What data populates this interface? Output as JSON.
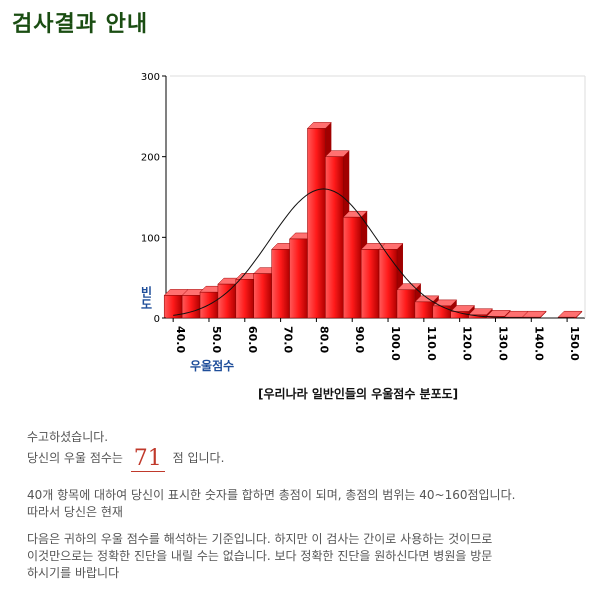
{
  "page": {
    "title": "검사결과 안내",
    "caption": "[우리나라 일반인들의 우울점수 분포도]"
  },
  "result": {
    "thanks": "수고하셨습니다.",
    "score_prefix": "당신의 우울 점수는",
    "score": "71",
    "score_suffix": "점 입니다.",
    "explain_1": "40개 항목에 대하여 당신이 표시한 숫자를 합하면 총점이 되며, 총점의 범위는 40~160점입니다.",
    "explain_2": "따라서 당신은 현재",
    "note_1": "다음은 귀하의 우울 점수를 해석하는 기준입니다. 하지만 이 검사는 간이로 사용하는 것이므로",
    "note_2": "이것만으로는 정확한 진단을 내릴 수는 없습니다. 보다 정확한 진단을 원하신다면 병원을 방문",
    "note_3": "하시기를 바랍니다"
  },
  "chart_data": {
    "type": "bar",
    "xlabel": "우울점수",
    "ylabel": "빈도",
    "ylim": [
      0,
      300
    ],
    "xlim": [
      38,
      155
    ],
    "x_ticks": [
      "40.0",
      "50.0",
      "60.0",
      "70.0",
      "80.0",
      "90.0",
      "100.0",
      "110.0",
      "120.0",
      "130.0",
      "140.0",
      "150.0"
    ],
    "y_ticks": [
      "0",
      "100",
      "200",
      "300"
    ],
    "bin_width": 5,
    "bins": [
      40,
      45,
      50,
      55,
      60,
      65,
      70,
      75,
      80,
      85,
      90,
      95,
      100,
      105,
      110,
      115,
      120,
      125,
      130,
      135,
      140,
      145,
      150
    ],
    "values": [
      28,
      28,
      32,
      42,
      48,
      55,
      85,
      98,
      235,
      200,
      125,
      85,
      85,
      35,
      20,
      15,
      8,
      4,
      2,
      1,
      1,
      0,
      1
    ],
    "bar_color": "#ff0000",
    "curve": "normal",
    "curve_mean": 82,
    "curve_peak": 160,
    "curve_sd": 15
  }
}
